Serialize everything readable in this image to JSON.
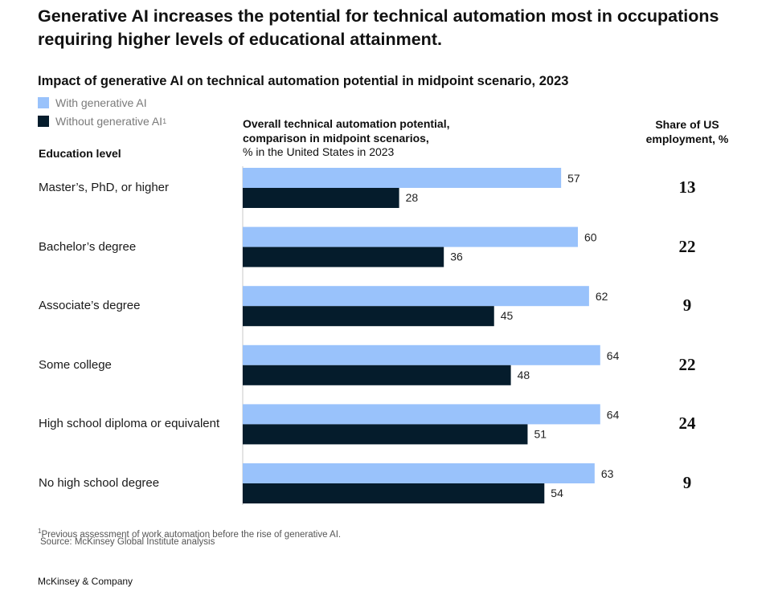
{
  "headline": "Generative AI increases the potential for technical automation most in occupations requiring higher levels of educational attainment.",
  "subtitle": "Impact of generative AI on technical automation potential in midpoint scenario, 2023",
  "legend": {
    "with_label": "With generative AI",
    "without_label": "Without generative AI",
    "without_marker": "1"
  },
  "columns": {
    "education": "Education level",
    "chart_line1": "Overall technical automation potential,",
    "chart_line2": "comparison in midpoint scenarios,",
    "chart_line3": "% in the United States in 2023",
    "share_line1": "Share of US",
    "share_line2": "employment, %"
  },
  "colors": {
    "with": "#99c2fb",
    "without": "#051c2c",
    "axis": "#c8c8c8"
  },
  "chart_data": {
    "type": "bar",
    "orientation": "horizontal",
    "categories": [
      "Master’s, PhD, or higher",
      "Bachelor’s degree",
      "Associate’s degree",
      "Some college",
      "High school diploma or equivalent",
      "No high school degree"
    ],
    "series": [
      {
        "name": "With generative AI",
        "values": [
          57,
          60,
          62,
          64,
          64,
          63
        ]
      },
      {
        "name": "Without generative AI",
        "values": [
          28,
          36,
          45,
          48,
          51,
          54
        ]
      }
    ],
    "share_of_us_employment": [
      13,
      22,
      9,
      22,
      24,
      9
    ],
    "xlim": [
      0,
      70
    ],
    "grid": false
  },
  "footnote": {
    "marker": "1",
    "text": "Previous assessment of work automation before the rise of generative AI."
  },
  "source": "Source: McKinsey Global Institute analysis",
  "brand": "McKinsey & Company"
}
